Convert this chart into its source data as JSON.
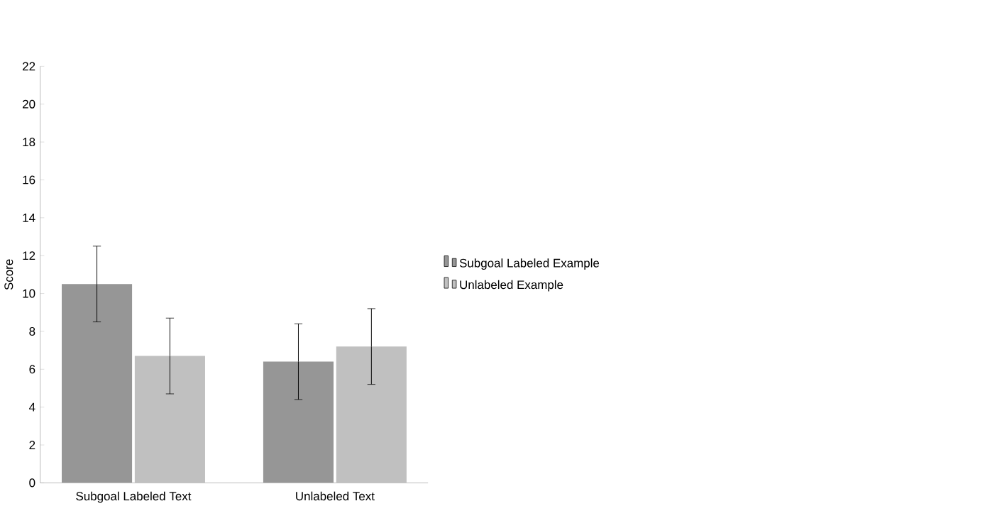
{
  "chart_data": {
    "type": "bar",
    "ylabel": "Score",
    "categories": [
      "Subgoal Labeled Text",
      "Unlabeled Text"
    ],
    "series": [
      {
        "name": "Subgoal Labeled Example",
        "color": "#969696",
        "values": [
          10.5,
          6.4
        ],
        "errors": [
          2,
          2
        ]
      },
      {
        "name": "Unlabeled Example",
        "color": "#c0c0c0",
        "values": [
          6.7,
          7.2
        ],
        "errors": [
          2,
          2
        ]
      }
    ],
    "ylim": [
      0,
      22
    ],
    "yticks": [
      0,
      2,
      4,
      6,
      8,
      10,
      12,
      14,
      16,
      18,
      20,
      22
    ],
    "legend": "right"
  }
}
